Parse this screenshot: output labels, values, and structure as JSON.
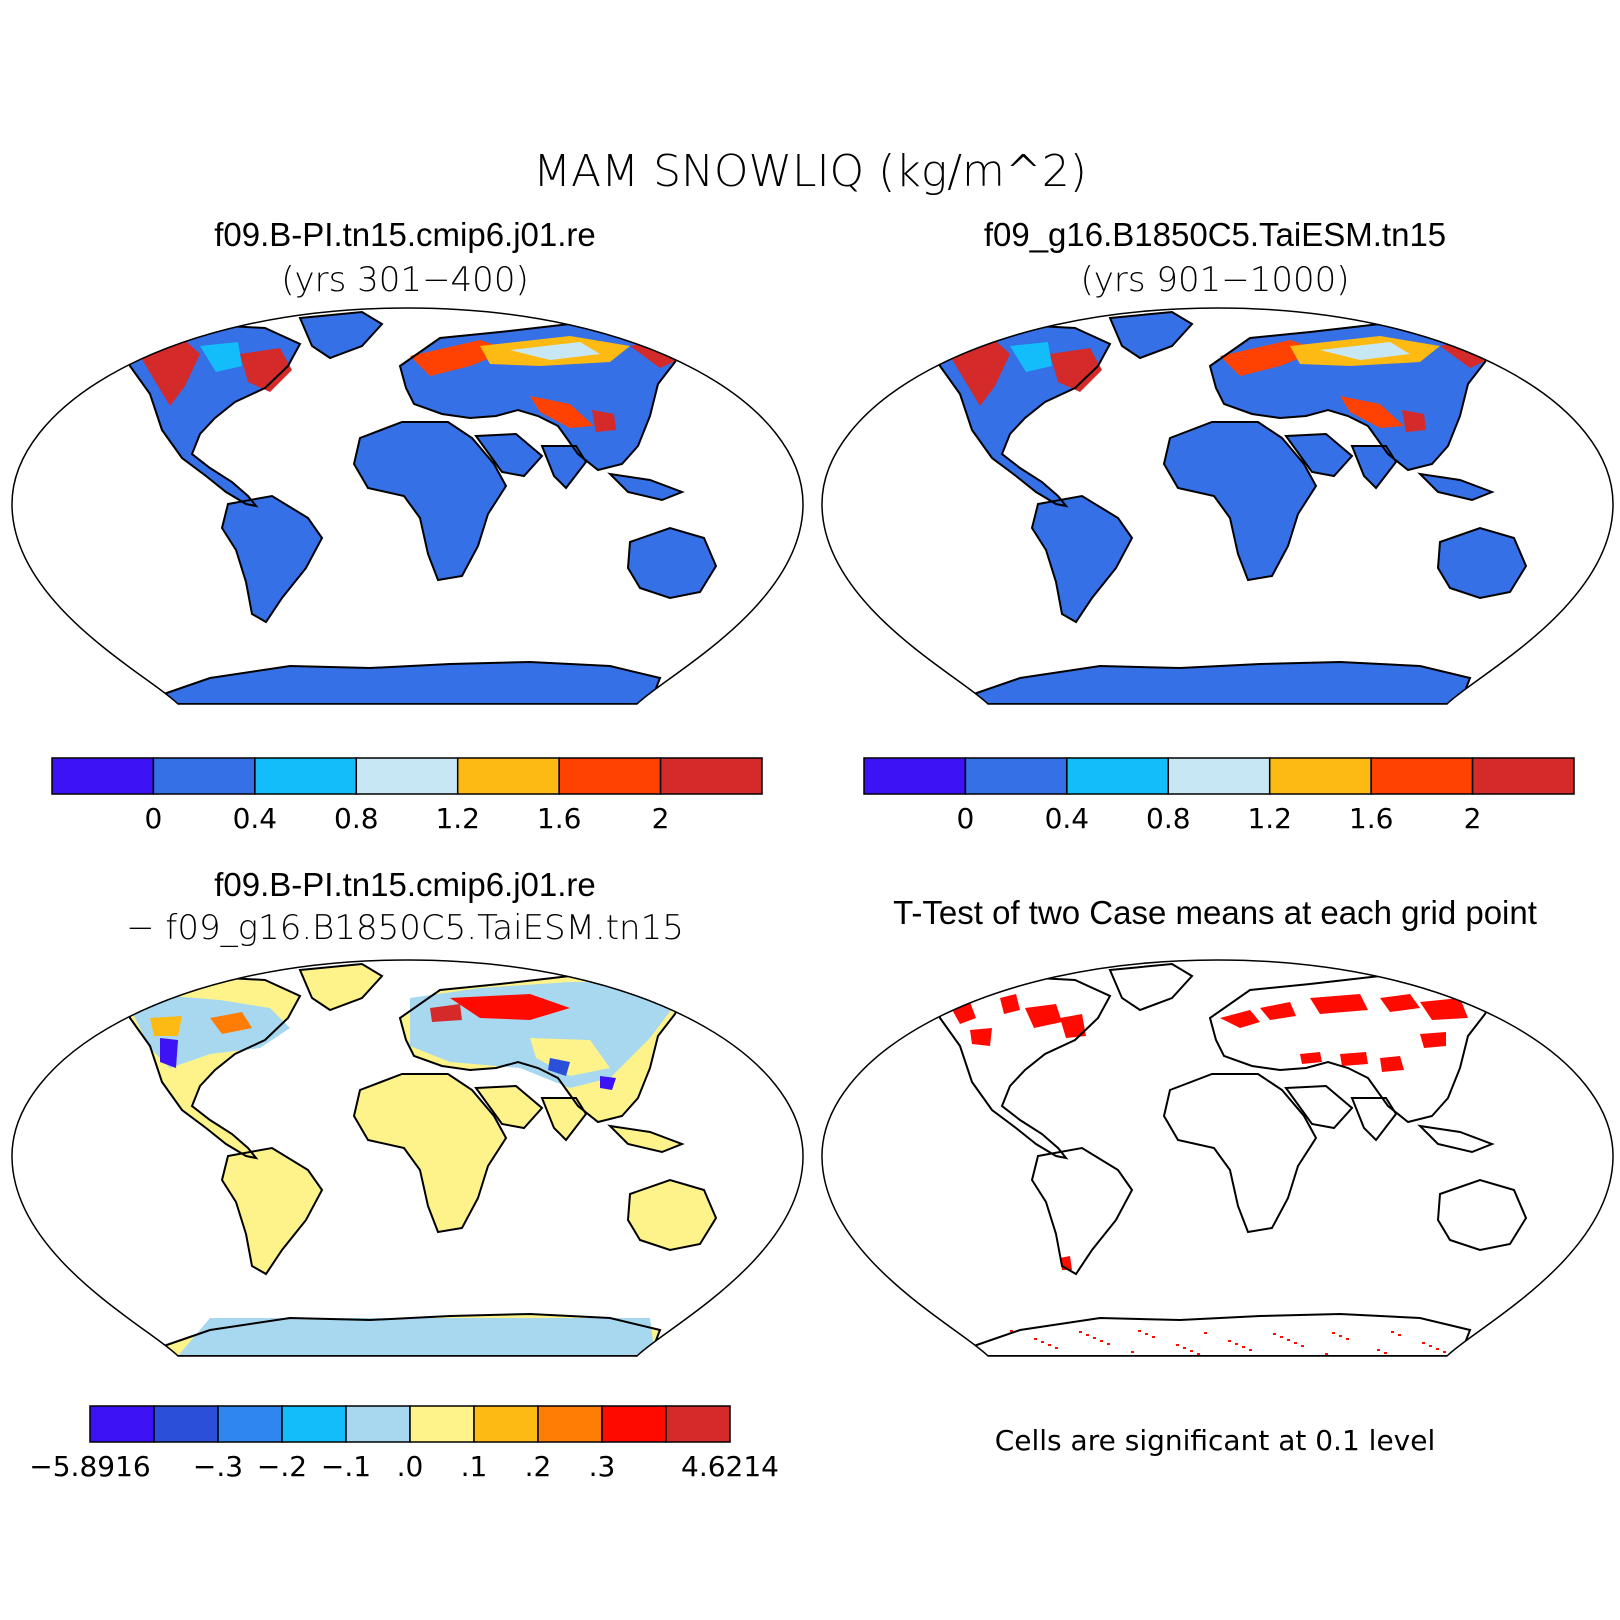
{
  "title": "MAM SNOWLIQ (kg/m^2)",
  "panels": {
    "top_left": {
      "title": "f09.B-PI.tn15.cmip6.j01.re",
      "subtitle": "(yrs 301−400)"
    },
    "top_right": {
      "title": "f09_g16.B1850C5.TaiESM.tn15",
      "subtitle": "(yrs 901−1000)"
    },
    "bottom_left": {
      "title": "f09.B-PI.tn15.cmip6.j01.re",
      "subtitle": "− f09_g16.B1850C5.TaiESM.tn15"
    },
    "bottom_right": {
      "title": "T-Test of two Case means at each grid point",
      "note": "Cells are significant at 0.1 level"
    }
  },
  "colorbars": {
    "case": {
      "colors": [
        "#3d12f5",
        "#3570e6",
        "#13bdf9",
        "#c8e7f5",
        "#fdba12",
        "#ff4202",
        "#d42a2a"
      ],
      "labels": [
        "0",
        "0.4",
        "0.8",
        "1.2",
        "1.6",
        "2"
      ]
    },
    "diff": {
      "colors": [
        "#3d12f5",
        "#2c4fd9",
        "#2f86ee",
        "#13bdf9",
        "#a7d8f0",
        "#fdf38a",
        "#fdba12",
        "#ff7d05",
        "#ff0a00",
        "#d42a2a"
      ],
      "labels": [
        "−5.8916",
        "−.3",
        "−.2",
        "−.1",
        ".0",
        ".1",
        ".2",
        ".3",
        "4.6214"
      ]
    }
  },
  "map_colors": {
    "land_case": "#3570e6",
    "land_diff": "#fdf38a",
    "significant": "#ff0a00"
  }
}
